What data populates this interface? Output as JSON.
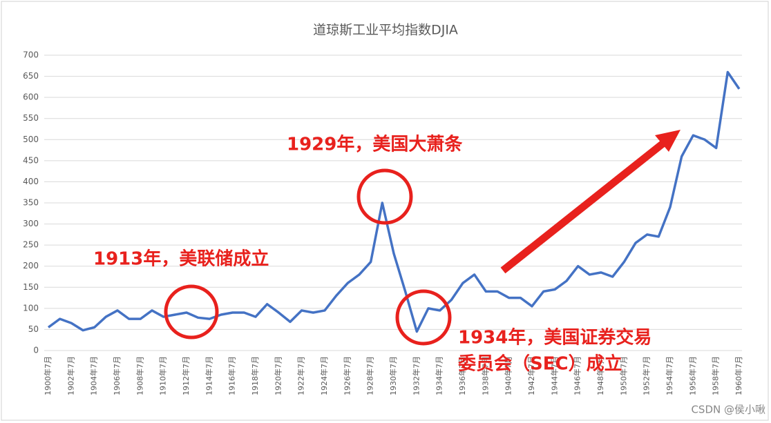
{
  "chart_data": {
    "type": "line",
    "title": "道琼斯工业平均指数DJIA",
    "categories": [
      "1900年7月",
      null,
      "1902年7月",
      null,
      "1904年7月",
      null,
      "1906年7月",
      null,
      "1908年7月",
      null,
      "1910年7月",
      null,
      "1912年7月",
      null,
      "1914年7月",
      null,
      "1916年7月",
      null,
      "1918年7月",
      null,
      "1920年7月",
      null,
      "1922年7月",
      null,
      "1924年7月",
      null,
      "1926年7月",
      null,
      "1928年7月",
      null,
      "1930年7月",
      null,
      "1932年7月",
      null,
      "1934年7月",
      null,
      "1936年7月",
      null,
      "1938年7月",
      null,
      "1940年7月",
      null,
      "1942年7月",
      null,
      "1944年7月",
      null,
      "1946年7月",
      null,
      "1948年7月",
      null,
      "1950年7月",
      null,
      "1952年7月",
      null,
      "1954年7月",
      null,
      "1956年7月",
      null,
      "1958年7月",
      null,
      "1960年7月"
    ],
    "series": [
      {
        "name": "DJIA",
        "color": "#4472c4",
        "values": [
          55,
          75,
          65,
          48,
          55,
          80,
          95,
          75,
          75,
          95,
          80,
          85,
          90,
          78,
          75,
          85,
          90,
          90,
          80,
          110,
          90,
          68,
          95,
          90,
          95,
          130,
          160,
          180,
          210,
          350,
          230,
          140,
          45,
          100,
          95,
          120,
          160,
          180,
          140,
          140,
          125,
          125,
          105,
          140,
          145,
          165,
          200,
          180,
          185,
          175,
          210,
          255,
          275,
          270,
          340,
          460,
          510,
          500,
          480,
          660,
          620
        ]
      }
    ],
    "ylim": [
      0,
      700
    ],
    "yticks": [
      0,
      50,
      100,
      150,
      200,
      250,
      300,
      350,
      400,
      450,
      500,
      550,
      600,
      650,
      700
    ],
    "grid": true,
    "annotations": [
      {
        "lines": [
          "1913年，美联储成立"
        ]
      },
      {
        "lines": [
          "1929年，美国大萧条"
        ]
      },
      {
        "lines": [
          "1934年，美国证券交易",
          "委员会（SEC）成立"
        ]
      }
    ],
    "watermark": "CSDN @侯小啾"
  }
}
